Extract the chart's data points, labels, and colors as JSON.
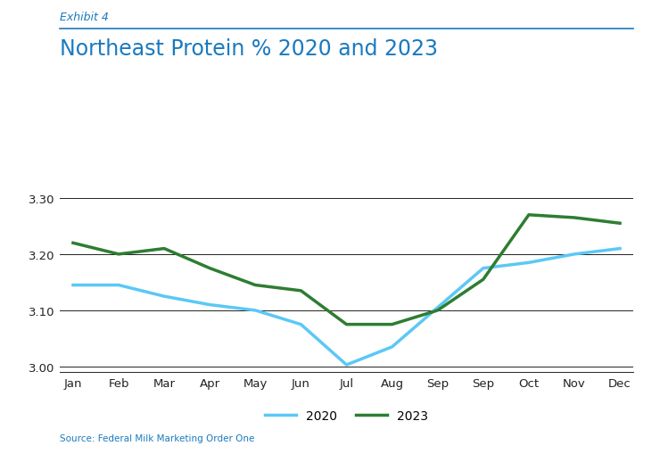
{
  "exhibit_label": "Exhibit 4",
  "title": "Northeast Protein % 2020 and 2023",
  "source": "Source: Federal Milk Marketing Order One",
  "x_labels": [
    "Jan",
    "Feb",
    "Mar",
    "Apr",
    "May",
    "Jun",
    "Jul",
    "Aug",
    "Sep",
    "Sep",
    "Oct",
    "Nov",
    "Dec"
  ],
  "data_2020": [
    3.145,
    3.145,
    3.125,
    3.11,
    3.1,
    3.075,
    3.003,
    3.035,
    3.105,
    3.175,
    3.185,
    3.2,
    3.21
  ],
  "data_2023": [
    3.22,
    3.2,
    3.21,
    3.175,
    3.145,
    3.135,
    3.075,
    3.075,
    3.1,
    3.155,
    3.27,
    3.265,
    3.255
  ],
  "color_2020": "#5bc8f5",
  "color_2023": "#2e7d32",
  "ylim": [
    2.99,
    3.33
  ],
  "yticks": [
    3.0,
    3.1,
    3.2,
    3.3
  ],
  "title_color": "#1a7abf",
  "exhibit_color": "#1a7abf",
  "source_color": "#1a7abf",
  "line_width": 2.5,
  "bg_color": "#ffffff",
  "grid_color": "#222222",
  "axis_label_color": "#222222",
  "top_rule_color": "#1a7abf",
  "bottom_rule_color": "#888888"
}
